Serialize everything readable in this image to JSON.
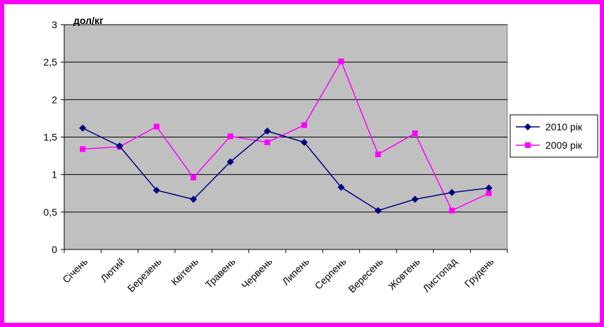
{
  "chart_data": {
    "type": "line",
    "unit_label": "дол/кг",
    "categories": [
      "Січень",
      "Лютий",
      "Березень",
      "Квітень",
      "Травень",
      "Червень",
      "Липень",
      "Серпень",
      "Вересень",
      "Жовтень",
      "Листопад",
      "Грудень"
    ],
    "y_ticks": [
      "0",
      "0,5",
      "1",
      "1,5",
      "2",
      "2,5",
      "3"
    ],
    "ylim": [
      0,
      3
    ],
    "grid": true,
    "legend_position": "right",
    "plot_background": "#c0c0c0",
    "series": [
      {
        "name": "2010 рік",
        "color": "#000080",
        "marker": "diamond",
        "values": [
          1.62,
          1.38,
          0.79,
          0.67,
          1.17,
          1.58,
          1.43,
          0.83,
          0.52,
          0.67,
          0.76,
          0.82
        ]
      },
      {
        "name": "2009 рік",
        "color": "#ff00ff",
        "marker": "square",
        "values": [
          1.34,
          1.37,
          1.64,
          0.96,
          1.51,
          1.43,
          1.66,
          2.51,
          1.27,
          1.55,
          0.52,
          0.75
        ]
      }
    ]
  },
  "colors": {
    "frame_border": "#ff00ff",
    "background": "#ffffff"
  }
}
